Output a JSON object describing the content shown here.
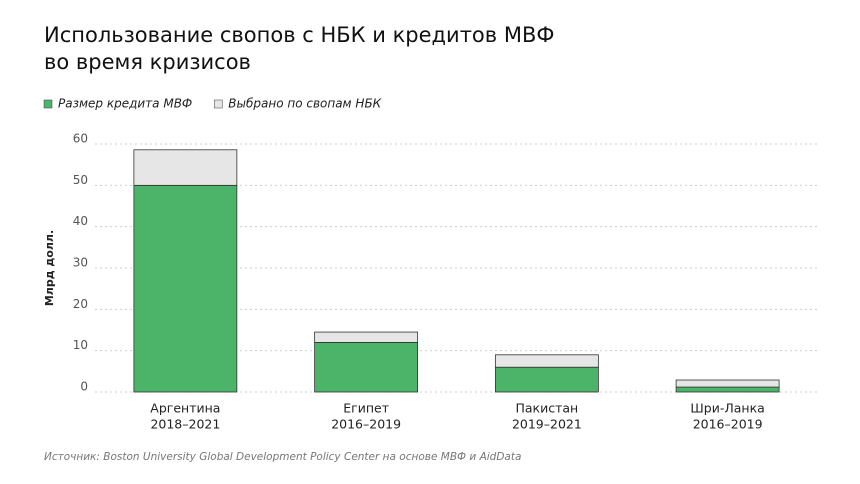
{
  "chart_data": {
    "type": "stacked_bar",
    "title": [
      "Использование свопов с НБК и кредитов МВФ",
      "во время кризисов"
    ],
    "y_label": "Млрд долл.",
    "categories": [
      [
        "Аргентина",
        "2018–2021"
      ],
      [
        "Египет",
        "2016–2019"
      ],
      [
        "Пакистан",
        "2019–2021"
      ],
      [
        "Шри-Ланка",
        "2016–2019"
      ]
    ],
    "series": [
      {
        "name": "Размер кредита МВФ",
        "color": "#4cb469",
        "values": [
          50,
          12,
          6,
          1.2
        ]
      },
      {
        "name": "Выбрано по свопам НБК",
        "color": "#e6e6e6",
        "values": [
          8.6,
          2.5,
          3,
          1.7
        ]
      }
    ],
    "ylim": [
      0,
      60
    ],
    "yticks": [
      0,
      10,
      20,
      30,
      40,
      50,
      60
    ],
    "grid": true,
    "source": "Источник: Boston University Global Development Policy Center на основе МВФ и AidData"
  }
}
